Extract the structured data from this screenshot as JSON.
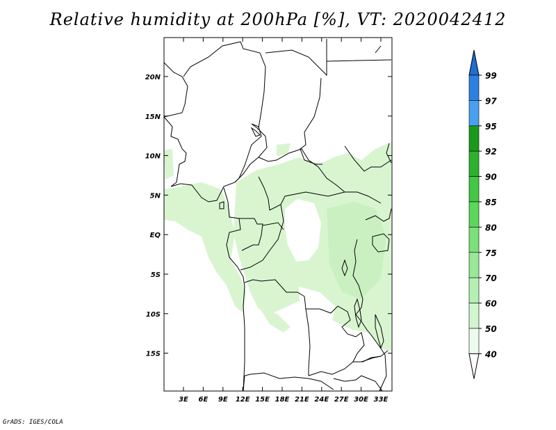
{
  "title": "Relative humidity at 200hPa [%], VT: 2020042412",
  "credit": "GrADS: IGES/COLA",
  "map": {
    "lat_labels": [
      "20N",
      "15N",
      "10N",
      "5N",
      "EQ",
      "5S",
      "10S",
      "15S"
    ],
    "lon_labels": [
      "3E",
      "6E",
      "9E",
      "12E",
      "15E",
      "18E",
      "21E",
      "24E",
      "27E",
      "30E",
      "33E"
    ],
    "field_color": "#d8f5d0",
    "field_dark_color": "#c4eeba"
  },
  "colorbar": {
    "labels": [
      "99",
      "97",
      "95",
      "92",
      "90",
      "85",
      "80",
      "75",
      "70",
      "60",
      "50",
      "40"
    ],
    "colors": [
      "#1f6fd0",
      "#2c80e2",
      "#4aa0f0",
      "#1a9a1a",
      "#2eb22e",
      "#42c842",
      "#5ad85a",
      "#7ae07a",
      "#98e898",
      "#b4f0b4",
      "#d0f6d0",
      "#ecfcec",
      "#ffffff"
    ]
  }
}
